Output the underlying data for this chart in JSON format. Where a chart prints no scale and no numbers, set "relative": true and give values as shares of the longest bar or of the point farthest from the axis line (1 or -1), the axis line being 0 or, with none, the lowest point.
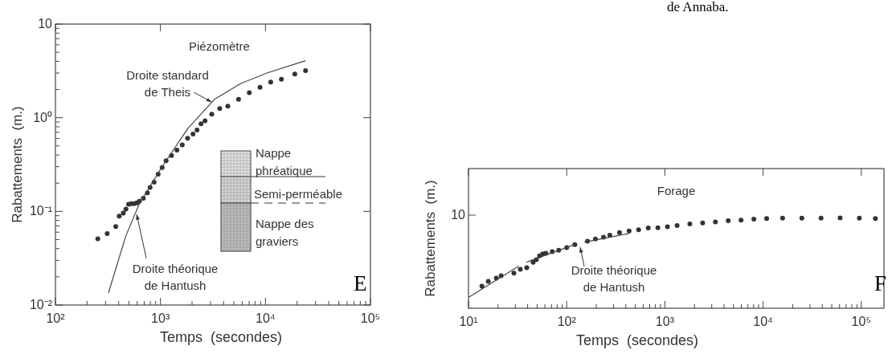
{
  "chart_data": [
    {
      "type": "scatter",
      "title": "Piézomètre",
      "xlabel": "Temps  (secondes)",
      "ylabel": "Rabattements  (m.)",
      "log": "xy",
      "xlim": [
        100,
        100000
      ],
      "ylim": [
        0.01,
        10
      ],
      "xticks": [
        {
          "value": 100,
          "label": "10²"
        },
        {
          "value": 200,
          "label": null
        },
        {
          "value": 300,
          "label": null
        },
        {
          "value": 400,
          "label": null
        },
        {
          "value": 500,
          "label": null
        },
        {
          "value": 600,
          "label": null
        },
        {
          "value": 700,
          "label": null
        },
        {
          "value": 800,
          "label": null
        },
        {
          "value": 900,
          "label": null
        },
        {
          "value": 1000,
          "label": "10³"
        },
        {
          "value": 2000,
          "label": null
        },
        {
          "value": 3000,
          "label": null
        },
        {
          "value": 4000,
          "label": null
        },
        {
          "value": 5000,
          "label": null
        },
        {
          "value": 6000,
          "label": null
        },
        {
          "value": 7000,
          "label": null
        },
        {
          "value": 8000,
          "label": null
        },
        {
          "value": 9000,
          "label": null
        },
        {
          "value": 10000,
          "label": "10⁴"
        },
        {
          "value": 20000,
          "label": null
        },
        {
          "value": 30000,
          "label": null
        },
        {
          "value": 40000,
          "label": null
        },
        {
          "value": 50000,
          "label": null
        },
        {
          "value": 60000,
          "label": null
        },
        {
          "value": 70000,
          "label": null
        },
        {
          "value": 80000,
          "label": null
        },
        {
          "value": 90000,
          "label": null
        },
        {
          "value": 100000,
          "label": "10⁵"
        }
      ],
      "yticks": [
        {
          "value": 0.01,
          "label": "10⁻²"
        },
        {
          "value": 0.02,
          "label": null
        },
        {
          "value": 0.03,
          "label": null
        },
        {
          "value": 0.04,
          "label": null
        },
        {
          "value": 0.05,
          "label": null
        },
        {
          "value": 0.06,
          "label": null
        },
        {
          "value": 0.07,
          "label": null
        },
        {
          "value": 0.08,
          "label": null
        },
        {
          "value": 0.09,
          "label": null
        },
        {
          "value": 0.1,
          "label": "10⁻¹"
        },
        {
          "value": 0.2,
          "label": null
        },
        {
          "value": 0.3,
          "label": null
        },
        {
          "value": 0.4,
          "label": null
        },
        {
          "value": 0.5,
          "label": null
        },
        {
          "value": 0.6,
          "label": null
        },
        {
          "value": 0.7,
          "label": null
        },
        {
          "value": 0.8,
          "label": null
        },
        {
          "value": 0.9,
          "label": null
        },
        {
          "value": 1,
          "label": "10⁰"
        },
        {
          "value": 2,
          "label": null
        },
        {
          "value": 3,
          "label": null
        },
        {
          "value": 4,
          "label": null
        },
        {
          "value": 5,
          "label": null
        },
        {
          "value": 6,
          "label": null
        },
        {
          "value": 7,
          "label": null
        },
        {
          "value": 8,
          "label": null
        },
        {
          "value": 9,
          "label": null
        },
        {
          "value": 10,
          "label": "10"
        }
      ],
      "series": [
        {
          "type": "scatter",
          "marker": "circle",
          "color": "#333333",
          "x": [
            253,
            311,
            375,
            405,
            443,
            469,
            497,
            527,
            560,
            594,
            630,
            687,
            751,
            797,
            870,
            951,
            1038,
            1133,
            1274,
            1435,
            1613,
            1815,
            2042,
            2230,
            2434,
            2658,
            3079,
            3670,
            4381,
            5546,
            7021,
            8878,
            11220,
            14190,
            19040,
            24080
          ],
          "values": [
            0.051,
            0.058,
            0.069,
            0.089,
            0.096,
            0.106,
            0.119,
            0.121,
            0.121,
            0.123,
            0.128,
            0.138,
            0.158,
            0.18,
            0.205,
            0.25,
            0.294,
            0.347,
            0.395,
            0.451,
            0.514,
            0.605,
            0.668,
            0.738,
            0.859,
            0.929,
            1.09,
            1.25,
            1.33,
            1.57,
            1.85,
            2.11,
            2.4,
            2.57,
            2.93,
            3.19
          ]
        },
        {
          "type": "line",
          "line_style": "solid",
          "color": "#444444",
          "x": [
            320,
            469,
            630,
            1007,
            1815,
            3267,
            5875,
            10590,
            24080
          ],
          "values": [
            0.0135,
            0.055,
            0.121,
            0.285,
            0.762,
            1.57,
            2.33,
            3.03,
            4.06
          ]
        }
      ],
      "annotations": [
        {
          "text": "Droite standard de Theis",
          "x": 3080,
          "y": 1.47
        },
        {
          "text": "Droite théorique de Hantush",
          "x": 594,
          "y": 0.093
        },
        "Nappe phréatique",
        "Semi-perméable",
        "Nappe des graviers",
        "E"
      ]
    },
    {
      "type": "scatter",
      "title": "Forage",
      "xlabel": "Temps  (secondes)",
      "ylabel": "Rabattements  (m.)",
      "log": "x",
      "relative": true,
      "xlim": [
        10,
        170000
      ],
      "xticks": [
        {
          "value": 10,
          "label": "10¹"
        },
        {
          "value": 20,
          "label": null
        },
        {
          "value": 30,
          "label": null
        },
        {
          "value": 40,
          "label": null
        },
        {
          "value": 50,
          "label": null
        },
        {
          "value": 60,
          "label": null
        },
        {
          "value": 70,
          "label": null
        },
        {
          "value": 80,
          "label": null
        },
        {
          "value": 90,
          "label": null
        },
        {
          "value": 100,
          "label": "10²"
        },
        {
          "value": 200,
          "label": null
        },
        {
          "value": 300,
          "label": null
        },
        {
          "value": 400,
          "label": null
        },
        {
          "value": 500,
          "label": null
        },
        {
          "value": 600,
          "label": null
        },
        {
          "value": 700,
          "label": null
        },
        {
          "value": 800,
          "label": null
        },
        {
          "value": 900,
          "label": null
        },
        {
          "value": 1000,
          "label": "10³"
        },
        {
          "value": 2000,
          "label": null
        },
        {
          "value": 3000,
          "label": null
        },
        {
          "value": 4000,
          "label": null
        },
        {
          "value": 5000,
          "label": null
        },
        {
          "value": 6000,
          "label": null
        },
        {
          "value": 7000,
          "label": null
        },
        {
          "value": 8000,
          "label": null
        },
        {
          "value": 9000,
          "label": null
        },
        {
          "value": 10000,
          "label": "10⁴"
        },
        {
          "value": 20000,
          "label": null
        },
        {
          "value": 30000,
          "label": null
        },
        {
          "value": 40000,
          "label": null
        },
        {
          "value": 50000,
          "label": null
        },
        {
          "value": 60000,
          "label": null
        },
        {
          "value": 70000,
          "label": null
        },
        {
          "value": 80000,
          "label": null
        },
        {
          "value": 90000,
          "label": null
        },
        {
          "value": 100000,
          "label": "10⁵"
        }
      ],
      "series": [
        {
          "type": "scatter",
          "marker": "circle",
          "color": "#333333",
          "x": [
            13.7,
            15.9,
            19.2,
            21.5,
            29,
            33.7,
            39.2,
            45.5,
            49.1,
            52.9,
            57,
            61.4,
            71.3,
            82.9,
            100,
            121,
            163,
            196,
            237,
            275,
            345,
            432,
            540,
            677,
            848,
            1061,
            1330,
            1795,
            2423,
            3270,
            4413,
            5957,
            8050,
            10860,
            15800,
            24800,
            38900,
            60900,
            95500,
            139000
          ],
          "values": [
            0.244,
            0.297,
            0.333,
            0.361,
            0.39,
            0.432,
            0.45,
            0.51,
            0.538,
            0.58,
            0.602,
            0.608,
            0.626,
            0.643,
            0.672,
            0.704,
            0.742,
            0.767,
            0.786,
            0.81,
            0.838,
            0.856,
            0.87,
            0.888,
            0.891,
            0.902,
            0.916,
            0.934,
            0.944,
            0.955,
            0.969,
            0.975,
            0.987,
            0.993,
            0.997,
            0.997,
            0.997,
            1,
            0.997,
            0.993
          ]
        },
        {
          "type": "line",
          "line_style": "solid",
          "color": "#444444",
          "x": [
            10,
            32.5,
            35,
            39,
            121,
            135,
            151,
            432
          ],
          "values": [
            0.121,
            0.467,
            null,
            0.51,
            0.706,
            null,
            0.732,
            0.827
          ]
        }
      ],
      "annotations": [
        "Droite théorique de Hantush",
        "F",
        "de Annaba.",
        "10"
      ]
    }
  ]
}
